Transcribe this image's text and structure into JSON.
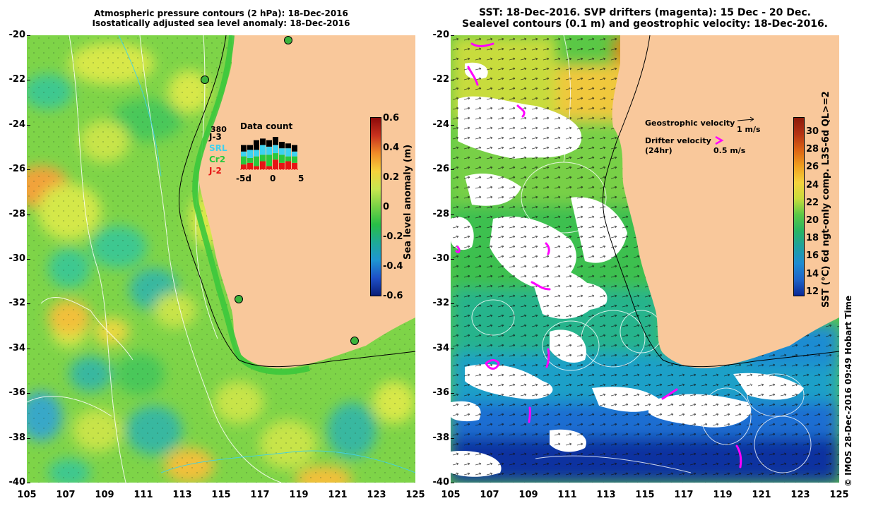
{
  "left_panel": {
    "title_line1": "Atmospheric pressure contours (2 hPa): 18-Dec-2016",
    "title_line2": "Isostatically adjusted sea level anomaly: 18-Dec-2016",
    "colorbar_label": "Sea level anomaly (m)",
    "colorbar_ticks": [
      "0.6",
      "0.4",
      "0.2",
      "0",
      "-0.2",
      "-0.4",
      "-0.6"
    ],
    "colorbar_colors": [
      "#8b0a0a",
      "#c8321e",
      "#f08c28",
      "#f5d23c",
      "#c8e650",
      "#78d246",
      "#28be46",
      "#1eaa96",
      "#1e96d2",
      "#1e50c8",
      "#0a1e78"
    ],
    "data_count": {
      "title": "Data count",
      "max_value": "380",
      "legend": [
        {
          "label": "J-3",
          "color": "#000000"
        },
        {
          "label": "SRL",
          "color": "#3cd2f0"
        },
        {
          "label": "Cr2",
          "color": "#28c83c"
        },
        {
          "label": "J-2",
          "color": "#e61414"
        }
      ],
      "x_ticks": [
        "-5d",
        "0",
        "5"
      ],
      "bars": [
        {
          "J2": 0.15,
          "Cr2": 0.25,
          "SRL": 0.15,
          "J3": 0.2
        },
        {
          "J2": 0.2,
          "Cr2": 0.15,
          "SRL": 0.25,
          "J3": 0.15
        },
        {
          "J2": 0.1,
          "Cr2": 0.3,
          "SRL": 0.2,
          "J3": 0.3
        },
        {
          "J2": 0.25,
          "Cr2": 0.2,
          "SRL": 0.3,
          "J3": 0.2
        },
        {
          "J2": 0.1,
          "Cr2": 0.35,
          "SRL": 0.25,
          "J3": 0.2
        },
        {
          "J2": 0.3,
          "Cr2": 0.2,
          "SRL": 0.25,
          "J3": 0.25
        },
        {
          "J2": 0.2,
          "Cr2": 0.25,
          "SRL": 0.2,
          "J3": 0.2
        },
        {
          "J2": 0.25,
          "Cr2": 0.15,
          "SRL": 0.25,
          "J3": 0.15
        },
        {
          "J2": 0.2,
          "Cr2": 0.2,
          "SRL": 0.15,
          "J3": 0.2
        }
      ]
    }
  },
  "right_panel": {
    "title_line1": "SST: 18-Dec-2016. SVP drifters (magenta): 15 Dec - 20 Dec.",
    "title_line2": "Sealevel contours (0.1 m) and geostrophic velocity: 18-Dec-2016.",
    "legend_geostrophic": "Geostrophic velocity",
    "legend_geostrophic_scale": "1 m/s",
    "legend_drifter_line1": "Drifter velocity",
    "legend_drifter_line2": "(24hr)",
    "legend_drifter_scale": "0.5 m/s",
    "colorbar_label": "SST (°C) 6d ngt-only comp. L3S-6d QL>=2",
    "colorbar_ticks": [
      "30",
      "28",
      "26",
      "24",
      "22",
      "20",
      "18",
      "16",
      "14",
      "12"
    ],
    "colorbar_colors": [
      "#8b1a0a",
      "#b43214",
      "#dc6414",
      "#f0a01e",
      "#f5d23c",
      "#c8dc3c",
      "#5ac846",
      "#28b464",
      "#1ea0a0",
      "#1e8cd2",
      "#1e64c8",
      "#0a2896"
    ]
  },
  "axes": {
    "lat_ticks": [
      "-20",
      "-22",
      "-24",
      "-26",
      "-28",
      "-30",
      "-32",
      "-34",
      "-36",
      "-38",
      "-40"
    ],
    "lon_ticks": [
      "105",
      "107",
      "109",
      "111",
      "113",
      "115",
      "117",
      "119",
      "121",
      "123",
      "125"
    ]
  },
  "credit": "© IMOS 28-Dec-2016 09:49 Hobart Time"
}
